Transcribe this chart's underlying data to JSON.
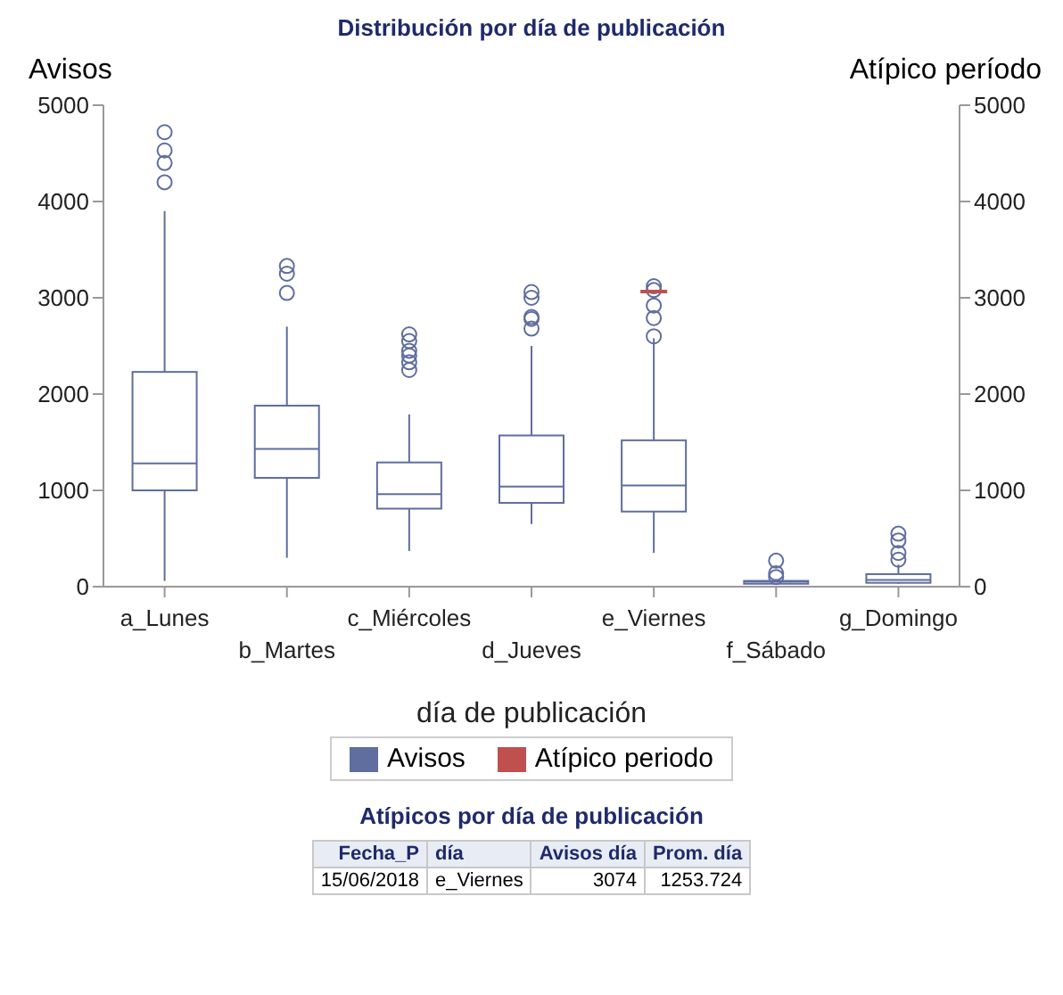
{
  "chart_data": {
    "type": "box",
    "title": "Distribución por día de publicación",
    "xlabel": "día de publicación",
    "ylabel": "Avisos",
    "y2label": "Atípico período",
    "categories": [
      "a_Lunes",
      "b_Martes",
      "c_Miércoles",
      "d_Jueves",
      "e_Viernes",
      "f_Sábado",
      "g_Domingo"
    ],
    "ylim": [
      0,
      5000
    ],
    "yticks": [
      0,
      1000,
      2000,
      3000,
      4000,
      5000
    ],
    "y2lim": [
      0,
      5000
    ],
    "y2ticks": [
      0,
      1000,
      2000,
      3000,
      4000,
      5000
    ],
    "grid": false,
    "legend": "bottom",
    "series": [
      {
        "name": "Avisos",
        "type": "box",
        "color": "#5f6d9f",
        "boxes": [
          {
            "low": 60,
            "q1": 1000,
            "median": 1280,
            "q3": 2230,
            "high": 3900,
            "outliers": [
              4200,
              4400,
              4530,
              4720
            ]
          },
          {
            "low": 300,
            "q1": 1130,
            "median": 1430,
            "q3": 1880,
            "high": 2700,
            "outliers": [
              3050,
              3250,
              3330
            ]
          },
          {
            "low": 370,
            "q1": 810,
            "median": 960,
            "q3": 1290,
            "high": 1790,
            "outliers": [
              2250,
              2330,
              2400,
              2450,
              2550,
              2620
            ]
          },
          {
            "low": 650,
            "q1": 870,
            "median": 1040,
            "q3": 1570,
            "high": 2500,
            "outliers": [
              2680,
              2780,
              2800,
              3000,
              3060
            ]
          },
          {
            "low": 350,
            "q1": 780,
            "median": 1050,
            "q3": 1520,
            "high": 2580,
            "outliers": [
              2600,
              2790,
              2920,
              3080,
              3120
            ]
          },
          {
            "low": 20,
            "q1": 30,
            "median": 50,
            "q3": 60,
            "high": 80,
            "outliers": [
              100,
              140,
              270
            ]
          },
          {
            "low": 30,
            "q1": 40,
            "median": 70,
            "q3": 130,
            "high": 230,
            "outliers": [
              280,
              350,
              480,
              550
            ]
          }
        ]
      },
      {
        "name": "Atípico periodo",
        "type": "box",
        "axis": "y2",
        "color": "#c0504d",
        "boxes": [
          null,
          null,
          null,
          null,
          {
            "low": 3074,
            "q1": 3074,
            "median": 3074,
            "q3": 3074,
            "high": 3074
          },
          null,
          null
        ]
      }
    ],
    "annotations": [
      "Atípicos por día de publicación",
      "Fecha_P",
      "día",
      "Avisos día",
      "Prom. día",
      "15/06/2018",
      "e_Viernes",
      "3074",
      "1253.724"
    ]
  }
}
